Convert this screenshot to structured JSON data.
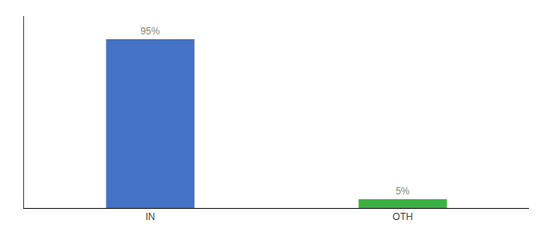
{
  "chart_data": {
    "type": "bar",
    "categories": [
      "IN",
      "OTH"
    ],
    "values": [
      95,
      5
    ],
    "value_labels": [
      "95%",
      "5%"
    ],
    "colors": [
      "#4472c4",
      "#3cb044"
    ],
    "ylim": [
      0,
      108
    ],
    "data_labels": true,
    "tick_labels": "x",
    "grid": false
  }
}
